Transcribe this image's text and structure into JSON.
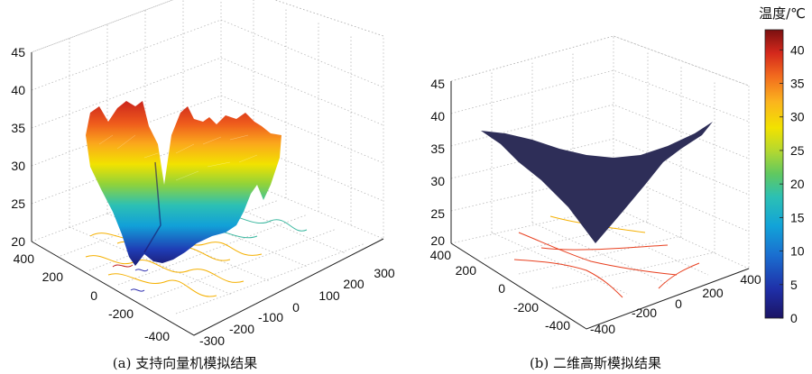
{
  "chart_data": [
    {
      "type": "surface3d",
      "panel": "a",
      "caption": "(a) 支持向量机模拟结果",
      "z_ticks": [
        20,
        25,
        30,
        35,
        40,
        45
      ],
      "y_ticks": [
        400,
        200,
        0,
        -200,
        -400
      ],
      "x_ticks": [
        -300,
        -200,
        -100,
        0,
        100,
        200,
        300
      ],
      "zlim": [
        20,
        45
      ],
      "grid": true,
      "colormap": "jet",
      "contour_colors": [
        "#f5b000",
        "#3cb8a0",
        "#c02020",
        "#3030b0"
      ]
    },
    {
      "type": "surface3d",
      "panel": "b",
      "caption": "(b) 二维高斯模拟结果",
      "z_ticks": [
        20,
        25,
        30,
        35,
        40,
        45
      ],
      "y_ticks": [
        400,
        200,
        0,
        -200,
        -400
      ],
      "x_ticks": [
        -400,
        -200,
        0,
        200,
        400
      ],
      "zlim": [
        20,
        45
      ],
      "grid": true,
      "surface_color": "#2e2e58",
      "contour_colors": [
        "#f5b000",
        "#e84020"
      ]
    }
  ],
  "colorbar": {
    "title": "温度/℃",
    "ticks": [
      0,
      5,
      10,
      15,
      20,
      25,
      30,
      35,
      40
    ],
    "range": [
      0,
      43
    ],
    "colors": [
      "#1b1464",
      "#1f2fa8",
      "#1a6fd0",
      "#12a3d8",
      "#2cc0b4",
      "#60c860",
      "#b4d830",
      "#f2e200",
      "#fbb41e",
      "#f26a1e",
      "#d4281c",
      "#8e1212",
      "#5e0e0e"
    ]
  }
}
